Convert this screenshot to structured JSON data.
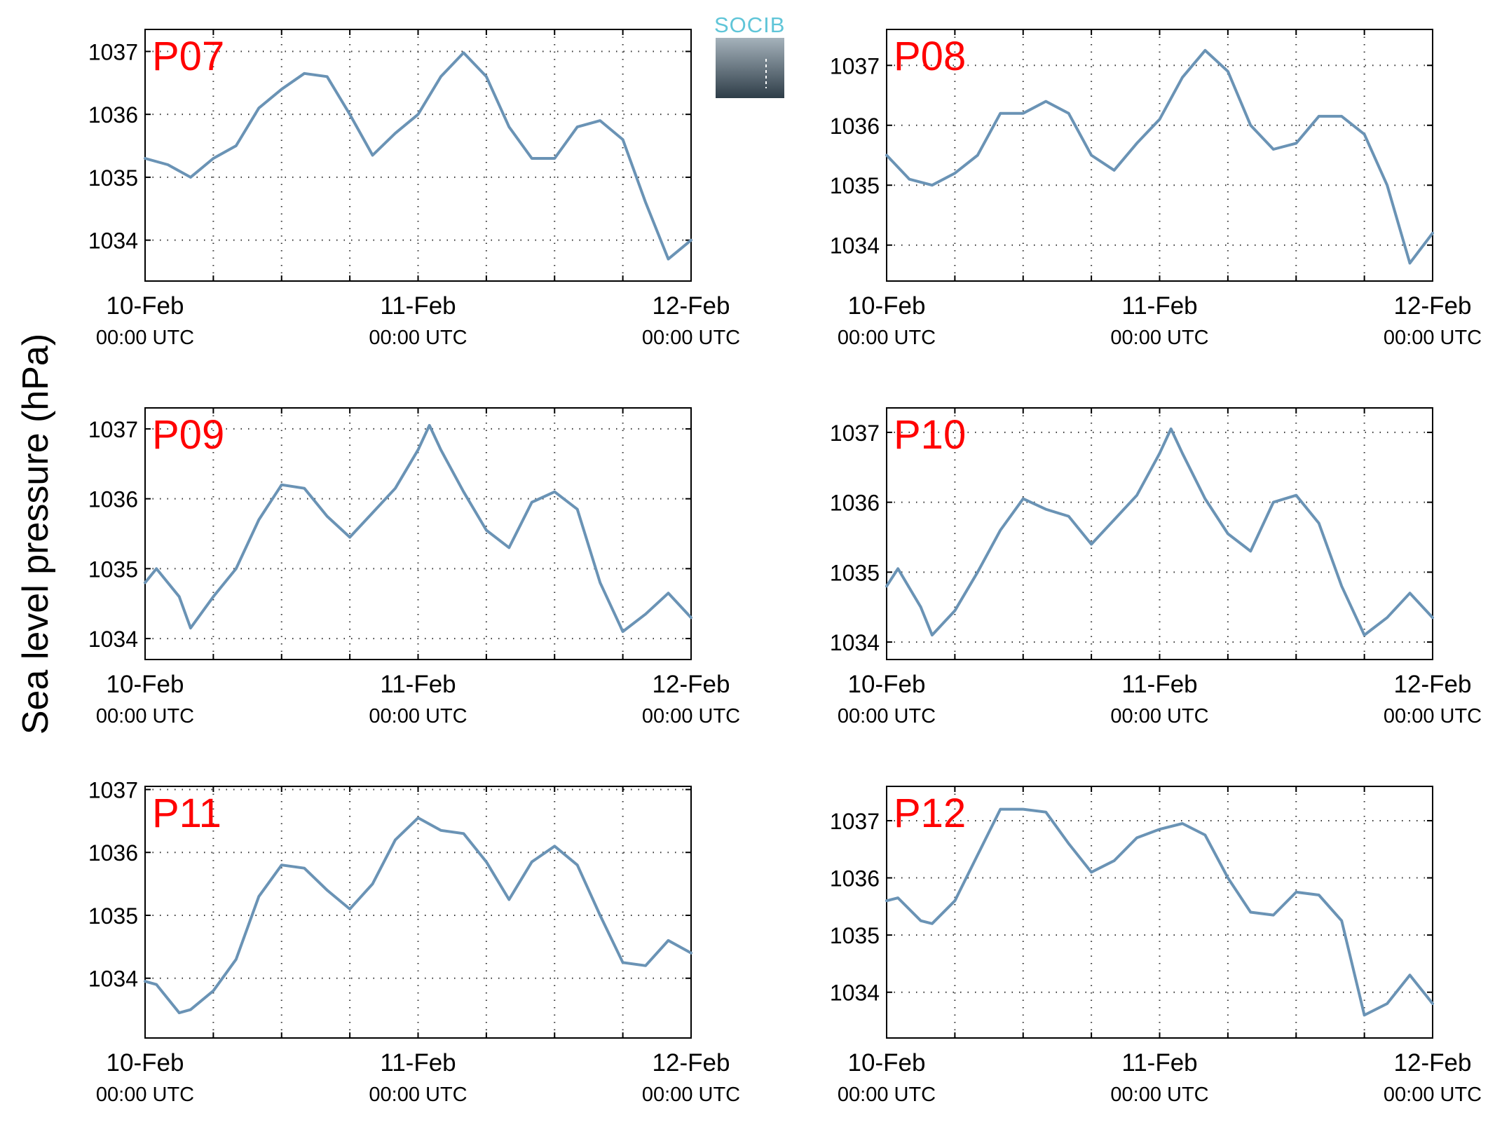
{
  "figure": {
    "ylabel": "Sea level pressure (hPa)",
    "logo_text": "SOCIB",
    "x_tick_labels": [
      {
        "date": "10-Feb",
        "time": "00:00 UTC"
      },
      {
        "date": "11-Feb",
        "time": "00:00 UTC"
      },
      {
        "date": "12-Feb",
        "time": "00:00 UTC"
      }
    ],
    "colors": {
      "line": "#6a93b5",
      "panel_label": "#ff0000",
      "grid": "#333333"
    }
  },
  "chart_data": [
    {
      "type": "line",
      "title": "P07",
      "xlim": [
        "10-Feb 00:00",
        "12-Feb 00:00"
      ],
      "ylim": [
        1033.35,
        1037.35
      ],
      "yticks": [
        1034,
        1035,
        1036,
        1037
      ],
      "grid": true,
      "x_hours": [
        0,
        2,
        4,
        6,
        8,
        10,
        12,
        14,
        16,
        18,
        20,
        22,
        24,
        26,
        28,
        30,
        32,
        34,
        36,
        38,
        40,
        42,
        44,
        46,
        48
      ],
      "y": [
        1035.3,
        1035.2,
        1035.0,
        1035.3,
        1035.5,
        1036.1,
        1036.4,
        1036.65,
        1036.6,
        1036.0,
        1035.35,
        1035.7,
        1036.0,
        1036.6,
        1036.98,
        1036.6,
        1035.8,
        1035.3,
        1035.3,
        1035.8,
        1035.9,
        1035.6,
        1034.6,
        1033.7,
        1034.0
      ]
    },
    {
      "type": "line",
      "title": "P08",
      "xlim": [
        "10-Feb 00:00",
        "12-Feb 00:00"
      ],
      "ylim": [
        1033.4,
        1037.6
      ],
      "yticks": [
        1034,
        1035,
        1036,
        1037
      ],
      "grid": true,
      "x_hours": [
        0,
        2,
        4,
        6,
        8,
        10,
        12,
        14,
        16,
        18,
        20,
        22,
        24,
        26,
        28,
        30,
        32,
        34,
        36,
        38,
        40,
        42,
        44,
        46,
        48
      ],
      "y": [
        1035.5,
        1035.1,
        1035.0,
        1035.2,
        1035.5,
        1036.2,
        1036.2,
        1036.4,
        1036.2,
        1035.5,
        1035.25,
        1035.7,
        1036.1,
        1036.8,
        1037.25,
        1036.9,
        1036.0,
        1035.6,
        1035.7,
        1036.15,
        1036.15,
        1035.85,
        1035.0,
        1033.7,
        1034.2
      ]
    },
    {
      "type": "line",
      "title": "P09",
      "xlim": [
        "10-Feb 00:00",
        "12-Feb 00:00"
      ],
      "ylim": [
        1033.7,
        1037.3
      ],
      "yticks": [
        1034,
        1035,
        1036,
        1037
      ],
      "grid": true,
      "x_hours": [
        0,
        1,
        3,
        4,
        6,
        8,
        10,
        12,
        14,
        16,
        18,
        20,
        22,
        24,
        25,
        26,
        28,
        30,
        32,
        34,
        36,
        38,
        40,
        42,
        44,
        46,
        48
      ],
      "y": [
        1034.8,
        1035.0,
        1034.6,
        1034.15,
        1034.6,
        1035.0,
        1035.7,
        1036.2,
        1036.15,
        1035.75,
        1035.45,
        1035.8,
        1036.15,
        1036.7,
        1037.05,
        1036.7,
        1036.1,
        1035.55,
        1035.3,
        1035.95,
        1036.1,
        1035.85,
        1034.8,
        1034.1,
        1034.35,
        1034.65,
        1034.3
      ]
    },
    {
      "type": "line",
      "title": "P10",
      "xlim": [
        "10-Feb 00:00",
        "12-Feb 00:00"
      ],
      "ylim": [
        1033.75,
        1037.35
      ],
      "yticks": [
        1034,
        1035,
        1036,
        1037
      ],
      "grid": true,
      "x_hours": [
        0,
        1,
        3,
        4,
        6,
        8,
        10,
        12,
        14,
        16,
        18,
        20,
        22,
        24,
        25,
        26,
        28,
        30,
        32,
        34,
        36,
        38,
        40,
        42,
        44,
        46,
        48
      ],
      "y": [
        1034.8,
        1035.05,
        1034.5,
        1034.1,
        1034.45,
        1035.0,
        1035.6,
        1036.05,
        1035.9,
        1035.8,
        1035.4,
        1035.75,
        1036.1,
        1036.7,
        1037.05,
        1036.7,
        1036.05,
        1035.55,
        1035.3,
        1036.0,
        1036.1,
        1035.7,
        1034.8,
        1034.1,
        1034.35,
        1034.7,
        1034.35
      ]
    },
    {
      "type": "line",
      "title": "P11",
      "xlim": [
        "10-Feb 00:00",
        "12-Feb 00:00"
      ],
      "ylim": [
        1033.05,
        1037.05
      ],
      "yticks": [
        1034,
        1035,
        1036,
        1037
      ],
      "grid": true,
      "x_hours": [
        0,
        1,
        3,
        4,
        6,
        8,
        10,
        12,
        14,
        16,
        18,
        20,
        22,
        24,
        26,
        28,
        30,
        32,
        34,
        36,
        38,
        40,
        42,
        44,
        46,
        48
      ],
      "y": [
        1033.95,
        1033.9,
        1033.45,
        1033.5,
        1033.8,
        1034.3,
        1035.3,
        1035.8,
        1035.75,
        1035.4,
        1035.1,
        1035.5,
        1036.2,
        1036.55,
        1036.35,
        1036.3,
        1035.85,
        1035.25,
        1035.85,
        1036.1,
        1035.8,
        1035.0,
        1034.25,
        1034.2,
        1034.6,
        1034.4
      ]
    },
    {
      "type": "line",
      "title": "P12",
      "xlim": [
        "10-Feb 00:00",
        "12-Feb 00:00"
      ],
      "ylim": [
        1033.2,
        1037.6
      ],
      "yticks": [
        1034,
        1035,
        1036,
        1037
      ],
      "grid": true,
      "x_hours": [
        0,
        1,
        3,
        4,
        6,
        8,
        10,
        12,
        14,
        16,
        18,
        20,
        22,
        24,
        26,
        28,
        30,
        32,
        34,
        36,
        38,
        40,
        42,
        44,
        46,
        48
      ],
      "y": [
        1035.6,
        1035.65,
        1035.25,
        1035.2,
        1035.6,
        1036.4,
        1037.2,
        1037.2,
        1037.15,
        1036.6,
        1036.1,
        1036.3,
        1036.7,
        1036.85,
        1036.95,
        1036.75,
        1036.0,
        1035.4,
        1035.35,
        1035.75,
        1035.7,
        1035.25,
        1033.6,
        1033.8,
        1034.3,
        1033.8
      ]
    }
  ]
}
